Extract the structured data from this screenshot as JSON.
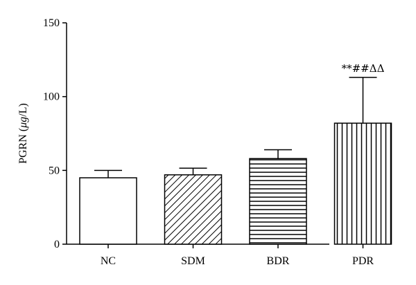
{
  "chart_data": {
    "type": "bar",
    "categories": [
      "NC",
      "SDM",
      "BDR",
      "PDR"
    ],
    "values": [
      45,
      47,
      58,
      82
    ],
    "error_upper": [
      50,
      51.5,
      64,
      113
    ],
    "patterns": [
      "none",
      "diagonal",
      "horizontal",
      "vertical"
    ],
    "annotations": [
      {
        "category": "PDR",
        "text": "**##ΔΔ"
      }
    ],
    "title": "",
    "xlabel": "",
    "ylabel_parts": [
      "PGRN (",
      "μg",
      "/L)"
    ],
    "ylim": [
      0,
      150
    ],
    "yticks": [
      0,
      50,
      100,
      150
    ],
    "grid": false,
    "legend": "none",
    "colors": {
      "bar_fill": "#ffffff",
      "stroke": "#000000"
    }
  }
}
